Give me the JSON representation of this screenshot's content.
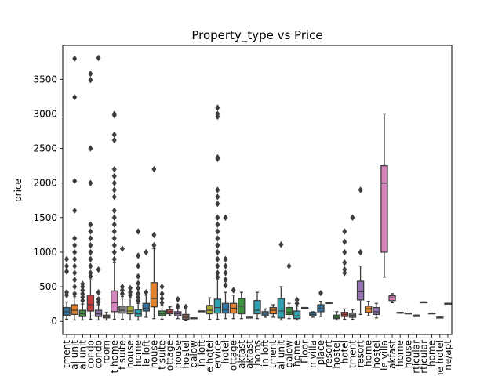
{
  "chart_data": {
    "type": "box",
    "title": "Property_type vs Price",
    "xlabel": "",
    "ylabel": "price",
    "ylim": [
      -190,
      3990
    ],
    "y_ticks": [
      0,
      500,
      1000,
      1500,
      2000,
      2500,
      3000,
      3500
    ],
    "grid": false,
    "categories": [
      {
        "label": "tment",
        "color": "#3274a1",
        "box": [
          90,
          140,
          200
        ],
        "whiskers": [
          30,
          280
        ],
        "outliers": [
          380,
          420,
          720,
          800,
          900
        ]
      },
      {
        "label": "al unit",
        "color": "#e1812c",
        "box": [
          100,
          160,
          240
        ],
        "whiskers": [
          20,
          360
        ],
        "outliers": [
          400,
          500,
          600,
          700,
          800,
          900,
          1000,
          1100,
          1200,
          1600,
          2030,
          3240,
          3800
        ]
      },
      {
        "label": "al unit",
        "color": "#3a923a",
        "box": [
          70,
          110,
          160
        ],
        "whiskers": [
          20,
          250
        ],
        "outliers": [
          300,
          350,
          400,
          450,
          500,
          540
        ]
      },
      {
        "label": "condo",
        "color": "#c03d3e",
        "box": [
          150,
          240,
          380
        ],
        "whiskers": [
          30,
          600
        ],
        "outliers": [
          650,
          700,
          800,
          900,
          1000,
          1100,
          1200,
          1300,
          1400,
          2000,
          2500,
          3490,
          3580
        ]
      },
      {
        "label": "condo",
        "color": "#9372b2",
        "box": [
          70,
          110,
          160
        ],
        "whiskers": [
          20,
          240
        ],
        "outliers": [
          280,
          320,
          420,
          750,
          3810
        ]
      },
      {
        "label": "room",
        "color": "#845b53",
        "box": [
          50,
          70,
          90
        ],
        "whiskers": [
          20,
          130
        ],
        "outliers": []
      },
      {
        "label": "t home",
        "color": "#d684bd",
        "box": [
          140,
          270,
          440
        ],
        "whiskers": [
          30,
          850
        ],
        "outliers": [
          900,
          1000,
          1100,
          1200,
          1300,
          1400,
          1500,
          1600,
          1800,
          1900,
          2000,
          2100,
          2200,
          2620,
          2700,
          2980,
          3000
        ]
      },
      {
        "label": "t suite",
        "color": "#7f7f7f",
        "box": [
          120,
          160,
          220
        ],
        "whiskers": [
          30,
          360
        ],
        "outliers": [
          400,
          450,
          500,
          1050
        ]
      },
      {
        "label": "house",
        "color": "#a9aa35",
        "box": [
          110,
          150,
          220
        ],
        "whiskers": [
          20,
          340
        ],
        "outliers": [
          380,
          420,
          480
        ]
      },
      {
        "label": "home",
        "color": "#2ea2b0",
        "box": [
          70,
          110,
          170
        ],
        "whiskers": [
          20,
          260
        ],
        "outliers": [
          300,
          350,
          400,
          480,
          550,
          650,
          800,
          950,
          1300
        ]
      },
      {
        "label": "le loft",
        "color": "#3274a1",
        "box": [
          150,
          190,
          260
        ],
        "whiskers": [
          60,
          380
        ],
        "outliers": [
          420,
          1000
        ]
      },
      {
        "label": "house",
        "color": "#e1812c",
        "box": [
          210,
          330,
          560
        ],
        "whiskers": [
          40,
          1050
        ],
        "outliers": [
          1100,
          1250,
          2200
        ]
      },
      {
        "label": "t suite",
        "color": "#3a923a",
        "box": [
          80,
          110,
          150
        ],
        "whiskers": [
          30,
          230
        ],
        "outliers": [
          270,
          330,
          400,
          500
        ]
      },
      {
        "label": "ottage",
        "color": "#c03d3e",
        "box": [
          110,
          140,
          170
        ],
        "whiskers": [
          80,
          210
        ],
        "outliers": []
      },
      {
        "label": "house",
        "color": "#9372b2",
        "box": [
          80,
          110,
          140
        ],
        "whiskers": [
          40,
          190
        ],
        "outliers": [
          220,
          320
        ]
      },
      {
        "label": "hostel",
        "color": "#845b53",
        "box": [
          30,
          60,
          100
        ],
        "whiskers": [
          10,
          180
        ],
        "outliers": [
          210
        ]
      },
      {
        "label": "galow",
        "color": "#d684bd",
        "box": [
          40,
          45,
          50
        ],
        "whiskers": [
          40,
          50
        ],
        "outliers": []
      },
      {
        "label": "in loft",
        "color": "#7f7f7f",
        "box": [
          150,
          150,
          150
        ],
        "whiskers": [
          150,
          150
        ],
        "outliers": []
      },
      {
        "label": "e hotel",
        "color": "#a9aa35",
        "box": [
          110,
          160,
          230
        ],
        "whiskers": [
          30,
          340
        ],
        "outliers": []
      },
      {
        "label": "ervice",
        "color": "#2ea2b0",
        "box": [
          120,
          200,
          320
        ],
        "whiskers": [
          30,
          600
        ],
        "outliers": [
          640,
          700,
          800,
          900,
          1000,
          1100,
          1200,
          1300,
          1400,
          1500,
          1700,
          1800,
          1900,
          2350,
          2370,
          2960,
          3000,
          3090
        ]
      },
      {
        "label": "hotel",
        "color": "#3274a1",
        "box": [
          120,
          170,
          260
        ],
        "whiskers": [
          40,
          420
        ],
        "outliers": [
          520,
          600,
          700,
          800,
          900,
          1500
        ]
      },
      {
        "label": "ottage",
        "color": "#e1812c",
        "box": [
          120,
          190,
          260
        ],
        "whiskers": [
          40,
          380
        ],
        "outliers": [
          450
        ]
      },
      {
        "label": "akfast",
        "color": "#3a923a",
        "box": [
          110,
          220,
          330
        ],
        "whiskers": [
          40,
          420
        ],
        "outliers": []
      },
      {
        "label": "akfast",
        "color": "#c03d3e",
        "box": [
          50,
          55,
          60
        ],
        "whiskers": [
          50,
          60
        ],
        "outliers": []
      },
      {
        "label": "homs",
        "color": "#2ea2b0",
        "box": [
          110,
          160,
          300
        ],
        "whiskers": [
          40,
          420
        ],
        "outliers": []
      },
      {
        "label": "in loft",
        "color": "#3274a1",
        "box": [
          90,
          120,
          140
        ],
        "whiskers": [
          60,
          180
        ],
        "outliers": []
      },
      {
        "label": "tment",
        "color": "#e1812c",
        "box": [
          110,
          160,
          200
        ],
        "whiskers": [
          60,
          240
        ],
        "outliers": []
      },
      {
        "label": "al unit",
        "color": "#2ea2b0",
        "box": [
          50,
          150,
          330
        ],
        "whiskers": [
          20,
          500
        ],
        "outliers": [
          1110
        ]
      },
      {
        "label": "galow",
        "color": "#3a923a",
        "box": [
          100,
          130,
          200
        ],
        "whiskers": [
          40,
          260
        ],
        "outliers": [
          800
        ]
      },
      {
        "label": "home",
        "color": "#2ea2b0",
        "box": [
          40,
          80,
          150
        ],
        "whiskers": [
          20,
          220
        ],
        "outliers": [
          260,
          310
        ]
      },
      {
        "label": "Floor",
        "color": "#c03d3e",
        "box": [
          190,
          195,
          200
        ],
        "whiskers": [
          190,
          200
        ],
        "outliers": []
      },
      {
        "label": "n villa",
        "color": "#3274a1",
        "box": [
          80,
          100,
          130
        ],
        "whiskers": [
          60,
          140
        ],
        "outliers": []
      },
      {
        "label": "place",
        "color": "#3274a1",
        "box": [
          140,
          190,
          240
        ],
        "whiskers": [
          70,
          290
        ],
        "outliers": [
          410
        ]
      },
      {
        "label": "resort",
        "color": "#e1812c",
        "box": [
          260,
          265,
          270
        ],
        "whiskers": [
          260,
          270
        ],
        "outliers": []
      },
      {
        "label": "hostel",
        "color": "#3a923a",
        "box": [
          40,
          60,
          90
        ],
        "whiskers": [
          20,
          140
        ],
        "outliers": []
      },
      {
        "label": "hotel",
        "color": "#c03d3e",
        "box": [
          70,
          100,
          130
        ],
        "whiskers": [
          30,
          180
        ],
        "outliers": [
          700,
          750,
          850,
          1000,
          1150,
          1300
        ]
      },
      {
        "label": "tment",
        "color": "#7f7f7f",
        "box": [
          60,
          90,
          120
        ],
        "whiskers": [
          30,
          170
        ],
        "outliers": [
          1500
        ]
      },
      {
        "label": "resort",
        "color": "#9372b2",
        "box": [
          310,
          430,
          580
        ],
        "whiskers": [
          100,
          800
        ],
        "outliers": [
          1000,
          1900
        ]
      },
      {
        "label": "home",
        "color": "#e1812c",
        "box": [
          130,
          180,
          220
        ],
        "whiskers": [
          80,
          290
        ],
        "outliers": []
      },
      {
        "label": "hostel",
        "color": "#9372b2",
        "box": [
          100,
          140,
          200
        ],
        "whiskers": [
          50,
          260
        ],
        "outliers": []
      },
      {
        "label": "le villa",
        "color": "#d684bd",
        "box": [
          1000,
          2000,
          2250
        ],
        "whiskers": [
          640,
          3000
        ],
        "outliers": []
      },
      {
        "label": "akfast",
        "color": "#d684bd",
        "box": [
          300,
          340,
          370
        ],
        "whiskers": [
          270,
          400
        ],
        "outliers": []
      },
      {
        "label": "home",
        "color": "#7f7f7f",
        "box": [
          120,
          125,
          130
        ],
        "whiskers": [
          120,
          130
        ],
        "outliers": []
      },
      {
        "label": "house",
        "color": "#7f7f7f",
        "box": [
          110,
          115,
          120
        ],
        "whiskers": [
          110,
          120
        ],
        "outliers": []
      },
      {
        "label": "rticular",
        "color": "#3a923a",
        "box": [
          70,
          80,
          90
        ],
        "whiskers": [
          70,
          90
        ],
        "outliers": []
      },
      {
        "label": "rticular",
        "color": "#7f7f7f",
        "box": [
          280,
          280,
          280
        ],
        "whiskers": [
          280,
          280
        ],
        "outliers": []
      },
      {
        "label": "home",
        "color": "#2ea2b0",
        "box": [
          120,
          120,
          120
        ],
        "whiskers": [
          120,
          120
        ],
        "outliers": []
      },
      {
        "label": "ne hotel",
        "color": "#7f7f7f",
        "box": [
          60,
          60,
          60
        ],
        "whiskers": [
          60,
          60
        ],
        "outliers": []
      },
      {
        "label": "ne/apt",
        "color": "#7f7f7f",
        "box": [
          260,
          260,
          260
        ],
        "whiskers": [
          260,
          260
        ],
        "outliers": []
      }
    ]
  }
}
